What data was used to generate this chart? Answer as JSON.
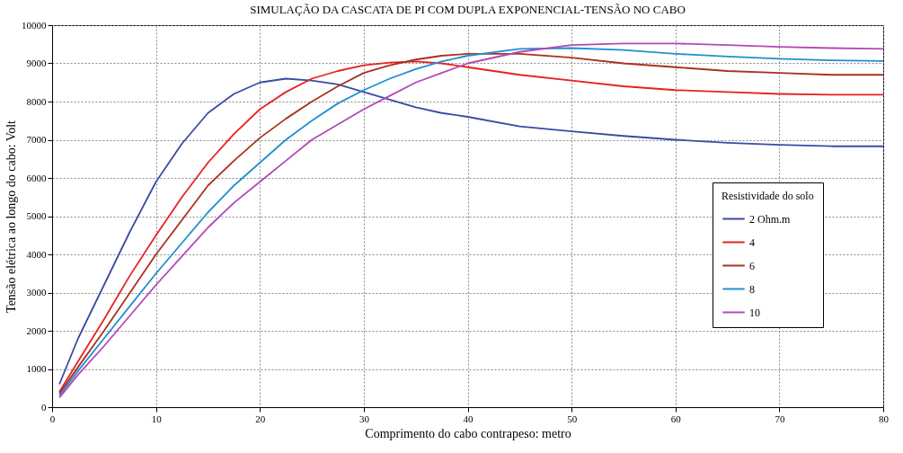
{
  "chart_data": {
    "type": "line",
    "title": "SIMULAÇÃO DA CASCATA DE PI COM DUPLA EXPONENCIAL-TENSÃO NO CABO",
    "xlabel": "Comprimento do cabo contrapeso:  metro",
    "ylabel": "Tensão elétrica ao longo do cabo:  Volt",
    "legend_title": "Resistividade do solo",
    "x": [
      0.7,
      2.5,
      5,
      7.5,
      10,
      12.5,
      15,
      17.5,
      20,
      22.5,
      25,
      27.5,
      30,
      32.5,
      35,
      37.5,
      40,
      45,
      50,
      55,
      60,
      65,
      70,
      75,
      80
    ],
    "series": [
      {
        "name": "2 Ohm.m",
        "color": "#3a4ba3",
        "values": [
          600,
          1800,
          3200,
          4600,
          5900,
          6900,
          7700,
          8200,
          8500,
          8600,
          8550,
          8450,
          8250,
          8050,
          7850,
          7700,
          7600,
          7350,
          7220,
          7100,
          7000,
          6920,
          6870,
          6830,
          6830
        ]
      },
      {
        "name": "4",
        "color": "#e8211f",
        "values": [
          400,
          1200,
          2300,
          3450,
          4500,
          5500,
          6400,
          7150,
          7800,
          8250,
          8600,
          8800,
          8950,
          9020,
          9050,
          9000,
          8900,
          8700,
          8550,
          8400,
          8300,
          8250,
          8200,
          8180,
          8180
        ]
      },
      {
        "name": "6",
        "color": "#a8321e",
        "values": [
          350,
          1050,
          2000,
          3000,
          4000,
          4900,
          5800,
          6450,
          7050,
          7550,
          8000,
          8400,
          8750,
          8950,
          9100,
          9200,
          9250,
          9250,
          9150,
          9000,
          8900,
          8800,
          8750,
          8700,
          8700
        ]
      },
      {
        "name": "8",
        "color": "#1f90d0",
        "values": [
          300,
          950,
          1800,
          2650,
          3500,
          4300,
          5100,
          5800,
          6400,
          7000,
          7500,
          7950,
          8300,
          8600,
          8850,
          9050,
          9200,
          9380,
          9400,
          9350,
          9250,
          9180,
          9120,
          9080,
          9060
        ]
      },
      {
        "name": "10",
        "color": "#b348b5",
        "values": [
          250,
          850,
          1600,
          2400,
          3200,
          3950,
          4700,
          5350,
          5900,
          6450,
          7000,
          7400,
          7800,
          8150,
          8500,
          8750,
          9000,
          9300,
          9480,
          9520,
          9520,
          9480,
          9430,
          9400,
          9380
        ]
      }
    ],
    "xlim": [
      0,
      80
    ],
    "xticks": [
      0,
      10,
      20,
      30,
      40,
      50,
      60,
      70,
      80
    ],
    "ylim": [
      0,
      10000
    ],
    "yticks": [
      0,
      1000,
      2000,
      3000,
      4000,
      5000,
      6000,
      7000,
      8000,
      9000,
      10000
    ],
    "grid": true,
    "legend": "right",
    "marker": "none",
    "line_style": "solid"
  }
}
